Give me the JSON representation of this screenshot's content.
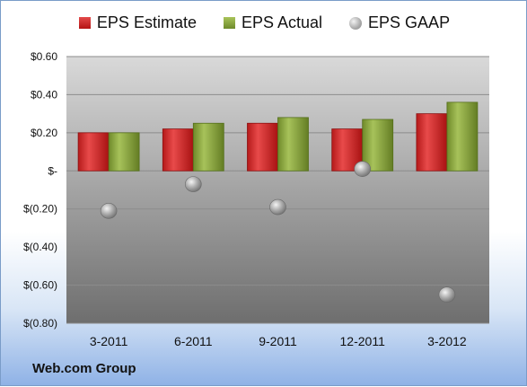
{
  "legend": {
    "estimate_label": "EPS Estimate",
    "actual_label": "EPS Actual",
    "gaap_label": "EPS GAAP"
  },
  "footer": {
    "company": "Web.com Group"
  },
  "colors": {
    "estimate": "#c82020",
    "actual": "#7f9a33",
    "gaap": "#a8a8a8"
  },
  "chart_data": {
    "type": "bar",
    "categories": [
      "3-2011",
      "6-2011",
      "9-2011",
      "12-2011",
      "3-2012"
    ],
    "series": [
      {
        "name": "EPS Estimate",
        "type": "bar",
        "values": [
          0.2,
          0.22,
          0.25,
          0.22,
          0.3
        ]
      },
      {
        "name": "EPS Actual",
        "type": "bar",
        "values": [
          0.2,
          0.25,
          0.28,
          0.27,
          0.36
        ]
      },
      {
        "name": "EPS GAAP",
        "type": "scatter",
        "values": [
          -0.21,
          -0.07,
          -0.19,
          0.01,
          -0.65
        ]
      }
    ],
    "ylim": [
      -0.8,
      0.6
    ],
    "yticks": [
      0.6,
      0.4,
      0.2,
      0.0,
      -0.2,
      -0.4,
      -0.6,
      -0.8
    ],
    "ytick_labels": [
      "$0.60",
      "$0.40",
      "$0.20",
      "$-",
      "$(0.20)",
      "$(0.40)",
      "$(0.60)",
      "$(0.80)"
    ],
    "grid": true,
    "legend_position": "top"
  }
}
